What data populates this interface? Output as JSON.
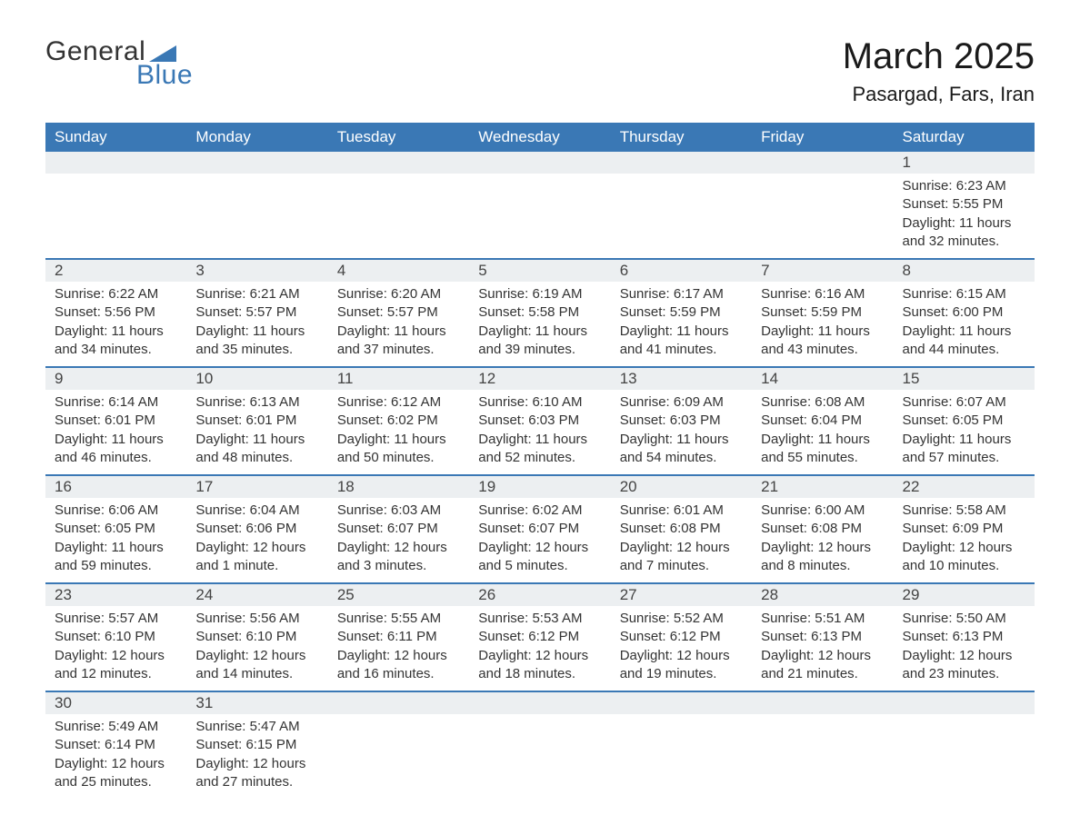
{
  "logo": {
    "line1": "General",
    "line2": "Blue",
    "triangle_color": "#3a78b5"
  },
  "title": "March 2025",
  "location": "Pasargad, Fars, Iran",
  "colors": {
    "header_bg": "#3a78b5",
    "header_text": "#ffffff",
    "daynum_bg": "#eceff1",
    "row_border": "#3a78b5",
    "text": "#333333",
    "page_bg": "#ffffff"
  },
  "typography": {
    "title_fontsize": 40,
    "location_fontsize": 22,
    "header_fontsize": 17,
    "daynum_fontsize": 17,
    "cell_fontsize": 15
  },
  "weekdays": [
    "Sunday",
    "Monday",
    "Tuesday",
    "Wednesday",
    "Thursday",
    "Friday",
    "Saturday"
  ],
  "weeks": [
    [
      null,
      null,
      null,
      null,
      null,
      null,
      {
        "day": "1",
        "sunrise": "Sunrise: 6:23 AM",
        "sunset": "Sunset: 5:55 PM",
        "daylight1": "Daylight: 11 hours",
        "daylight2": "and 32 minutes."
      }
    ],
    [
      {
        "day": "2",
        "sunrise": "Sunrise: 6:22 AM",
        "sunset": "Sunset: 5:56 PM",
        "daylight1": "Daylight: 11 hours",
        "daylight2": "and 34 minutes."
      },
      {
        "day": "3",
        "sunrise": "Sunrise: 6:21 AM",
        "sunset": "Sunset: 5:57 PM",
        "daylight1": "Daylight: 11 hours",
        "daylight2": "and 35 minutes."
      },
      {
        "day": "4",
        "sunrise": "Sunrise: 6:20 AM",
        "sunset": "Sunset: 5:57 PM",
        "daylight1": "Daylight: 11 hours",
        "daylight2": "and 37 minutes."
      },
      {
        "day": "5",
        "sunrise": "Sunrise: 6:19 AM",
        "sunset": "Sunset: 5:58 PM",
        "daylight1": "Daylight: 11 hours",
        "daylight2": "and 39 minutes."
      },
      {
        "day": "6",
        "sunrise": "Sunrise: 6:17 AM",
        "sunset": "Sunset: 5:59 PM",
        "daylight1": "Daylight: 11 hours",
        "daylight2": "and 41 minutes."
      },
      {
        "day": "7",
        "sunrise": "Sunrise: 6:16 AM",
        "sunset": "Sunset: 5:59 PM",
        "daylight1": "Daylight: 11 hours",
        "daylight2": "and 43 minutes."
      },
      {
        "day": "8",
        "sunrise": "Sunrise: 6:15 AM",
        "sunset": "Sunset: 6:00 PM",
        "daylight1": "Daylight: 11 hours",
        "daylight2": "and 44 minutes."
      }
    ],
    [
      {
        "day": "9",
        "sunrise": "Sunrise: 6:14 AM",
        "sunset": "Sunset: 6:01 PM",
        "daylight1": "Daylight: 11 hours",
        "daylight2": "and 46 minutes."
      },
      {
        "day": "10",
        "sunrise": "Sunrise: 6:13 AM",
        "sunset": "Sunset: 6:01 PM",
        "daylight1": "Daylight: 11 hours",
        "daylight2": "and 48 minutes."
      },
      {
        "day": "11",
        "sunrise": "Sunrise: 6:12 AM",
        "sunset": "Sunset: 6:02 PM",
        "daylight1": "Daylight: 11 hours",
        "daylight2": "and 50 minutes."
      },
      {
        "day": "12",
        "sunrise": "Sunrise: 6:10 AM",
        "sunset": "Sunset: 6:03 PM",
        "daylight1": "Daylight: 11 hours",
        "daylight2": "and 52 minutes."
      },
      {
        "day": "13",
        "sunrise": "Sunrise: 6:09 AM",
        "sunset": "Sunset: 6:03 PM",
        "daylight1": "Daylight: 11 hours",
        "daylight2": "and 54 minutes."
      },
      {
        "day": "14",
        "sunrise": "Sunrise: 6:08 AM",
        "sunset": "Sunset: 6:04 PM",
        "daylight1": "Daylight: 11 hours",
        "daylight2": "and 55 minutes."
      },
      {
        "day": "15",
        "sunrise": "Sunrise: 6:07 AM",
        "sunset": "Sunset: 6:05 PM",
        "daylight1": "Daylight: 11 hours",
        "daylight2": "and 57 minutes."
      }
    ],
    [
      {
        "day": "16",
        "sunrise": "Sunrise: 6:06 AM",
        "sunset": "Sunset: 6:05 PM",
        "daylight1": "Daylight: 11 hours",
        "daylight2": "and 59 minutes."
      },
      {
        "day": "17",
        "sunrise": "Sunrise: 6:04 AM",
        "sunset": "Sunset: 6:06 PM",
        "daylight1": "Daylight: 12 hours",
        "daylight2": "and 1 minute."
      },
      {
        "day": "18",
        "sunrise": "Sunrise: 6:03 AM",
        "sunset": "Sunset: 6:07 PM",
        "daylight1": "Daylight: 12 hours",
        "daylight2": "and 3 minutes."
      },
      {
        "day": "19",
        "sunrise": "Sunrise: 6:02 AM",
        "sunset": "Sunset: 6:07 PM",
        "daylight1": "Daylight: 12 hours",
        "daylight2": "and 5 minutes."
      },
      {
        "day": "20",
        "sunrise": "Sunrise: 6:01 AM",
        "sunset": "Sunset: 6:08 PM",
        "daylight1": "Daylight: 12 hours",
        "daylight2": "and 7 minutes."
      },
      {
        "day": "21",
        "sunrise": "Sunrise: 6:00 AM",
        "sunset": "Sunset: 6:08 PM",
        "daylight1": "Daylight: 12 hours",
        "daylight2": "and 8 minutes."
      },
      {
        "day": "22",
        "sunrise": "Sunrise: 5:58 AM",
        "sunset": "Sunset: 6:09 PM",
        "daylight1": "Daylight: 12 hours",
        "daylight2": "and 10 minutes."
      }
    ],
    [
      {
        "day": "23",
        "sunrise": "Sunrise: 5:57 AM",
        "sunset": "Sunset: 6:10 PM",
        "daylight1": "Daylight: 12 hours",
        "daylight2": "and 12 minutes."
      },
      {
        "day": "24",
        "sunrise": "Sunrise: 5:56 AM",
        "sunset": "Sunset: 6:10 PM",
        "daylight1": "Daylight: 12 hours",
        "daylight2": "and 14 minutes."
      },
      {
        "day": "25",
        "sunrise": "Sunrise: 5:55 AM",
        "sunset": "Sunset: 6:11 PM",
        "daylight1": "Daylight: 12 hours",
        "daylight2": "and 16 minutes."
      },
      {
        "day": "26",
        "sunrise": "Sunrise: 5:53 AM",
        "sunset": "Sunset: 6:12 PM",
        "daylight1": "Daylight: 12 hours",
        "daylight2": "and 18 minutes."
      },
      {
        "day": "27",
        "sunrise": "Sunrise: 5:52 AM",
        "sunset": "Sunset: 6:12 PM",
        "daylight1": "Daylight: 12 hours",
        "daylight2": "and 19 minutes."
      },
      {
        "day": "28",
        "sunrise": "Sunrise: 5:51 AM",
        "sunset": "Sunset: 6:13 PM",
        "daylight1": "Daylight: 12 hours",
        "daylight2": "and 21 minutes."
      },
      {
        "day": "29",
        "sunrise": "Sunrise: 5:50 AM",
        "sunset": "Sunset: 6:13 PM",
        "daylight1": "Daylight: 12 hours",
        "daylight2": "and 23 minutes."
      }
    ],
    [
      {
        "day": "30",
        "sunrise": "Sunrise: 5:49 AM",
        "sunset": "Sunset: 6:14 PM",
        "daylight1": "Daylight: 12 hours",
        "daylight2": "and 25 minutes."
      },
      {
        "day": "31",
        "sunrise": "Sunrise: 5:47 AM",
        "sunset": "Sunset: 6:15 PM",
        "daylight1": "Daylight: 12 hours",
        "daylight2": "and 27 minutes."
      },
      null,
      null,
      null,
      null,
      null
    ]
  ]
}
